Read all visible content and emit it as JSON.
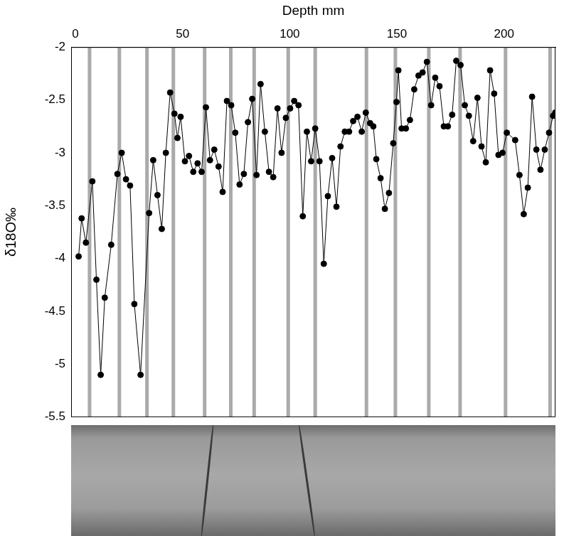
{
  "chart_data": {
    "type": "line",
    "x_label": "Depth mm",
    "y_label": "δ18O‰",
    "x": [
      1.5,
      2.9,
      4.9,
      7.9,
      9.8,
      11.8,
      13.7,
      16.7,
      19.6,
      21.6,
      23.6,
      25.5,
      27.5,
      30.4,
      34.4,
      36.3,
      38.3,
      40.3,
      42.2,
      44.2,
      46.2,
      47.6,
      49.1,
      51.1,
      53,
      55,
      57,
      58.9,
      60.9,
      62.8,
      64.8,
      66.8,
      68.7,
      70.7,
      72.7,
      74.6,
      76.6,
      78.6,
      80.5,
      82.5,
      84.5,
      86.4,
      88.4,
      90.3,
      92.3,
      94.3,
      96.2,
      98.2,
      100.2,
      102.1,
      104.1,
      106.1,
      108,
      110,
      111.9,
      113.9,
      115.9,
      117.8,
      119.8,
      121.8,
      123.7,
      125.7,
      127.7,
      129.6,
      131.6,
      133.6,
      135.5,
      137.5,
      139,
      140.4,
      142.4,
      144.4,
      146.3,
      148.3,
      149.8,
      150.7,
      152.2,
      154.2,
      156.1,
      158.1,
      160.1,
      162,
      164,
      166,
      167.9,
      169.9,
      171.9,
      173.8,
      175.8,
      177.7,
      179.7,
      181.7,
      183.6,
      185.6,
      187.6,
      189.5,
      191.5,
      193.5,
      195.4,
      197.4,
      199.3,
      201.3,
      205.2,
      207.2,
      209.2,
      211.1,
      213.1,
      215.1,
      217,
      219,
      221,
      222.9,
      223.9
    ],
    "values": [
      -3.98,
      -3.62,
      -3.85,
      -3.27,
      -4.2,
      -5.1,
      -4.37,
      -3.87,
      -3.2,
      -3.0,
      -3.25,
      -3.31,
      -4.43,
      -5.1,
      -3.57,
      -3.07,
      -3.4,
      -3.72,
      -3.0,
      -2.43,
      -2.63,
      -2.86,
      -2.66,
      -3.08,
      -3.03,
      -3.18,
      -3.1,
      -3.18,
      -2.57,
      -3.07,
      -2.97,
      -3.13,
      -3.37,
      -2.51,
      -2.55,
      -2.81,
      -3.3,
      -3.2,
      -2.71,
      -2.49,
      -3.21,
      -2.35,
      -2.8,
      -3.18,
      -3.23,
      -2.58,
      -3.0,
      -2.67,
      -2.58,
      -2.51,
      -2.55,
      -3.6,
      -2.8,
      -3.08,
      -2.77,
      -3.08,
      -4.05,
      -3.41,
      -3.05,
      -3.51,
      -2.94,
      -2.8,
      -2.8,
      -2.7,
      -2.66,
      -2.8,
      -2.62,
      -2.72,
      -2.75,
      -3.06,
      -3.24,
      -3.53,
      -3.38,
      -2.91,
      -2.52,
      -2.22,
      -2.77,
      -2.77,
      -2.69,
      -2.4,
      -2.27,
      -2.24,
      -2.14,
      -2.55,
      -2.29,
      -2.37,
      -2.75,
      -2.75,
      -2.64,
      -2.13,
      -2.17,
      -2.55,
      -2.65,
      -2.89,
      -2.48,
      -2.94,
      -3.09,
      -2.22,
      -2.44,
      -3.02,
      -3.0,
      -2.81,
      -2.88,
      -3.21,
      -3.58,
      -3.33,
      -2.47,
      -2.97,
      -3.16,
      -2.97,
      -2.81,
      -2.65,
      -2.62
    ],
    "bands": [
      6.6,
      20.5,
      33.4,
      45.7,
      60.3,
      72.5,
      83.4,
      99.3,
      111.9,
      135.8,
      149.3,
      164.9,
      179.5,
      200.7,
      221.5
    ],
    "xlim": [
      -2,
      224
    ],
    "xticks": [
      0,
      50,
      100,
      150,
      200
    ],
    "ylim": [
      -5.5,
      -2
    ],
    "yticks": [
      -5.5,
      -5,
      -4.5,
      -4,
      -3.5,
      -3,
      -2.5,
      -2
    ],
    "color": "#000000",
    "marker": "circle",
    "grid": false
  }
}
